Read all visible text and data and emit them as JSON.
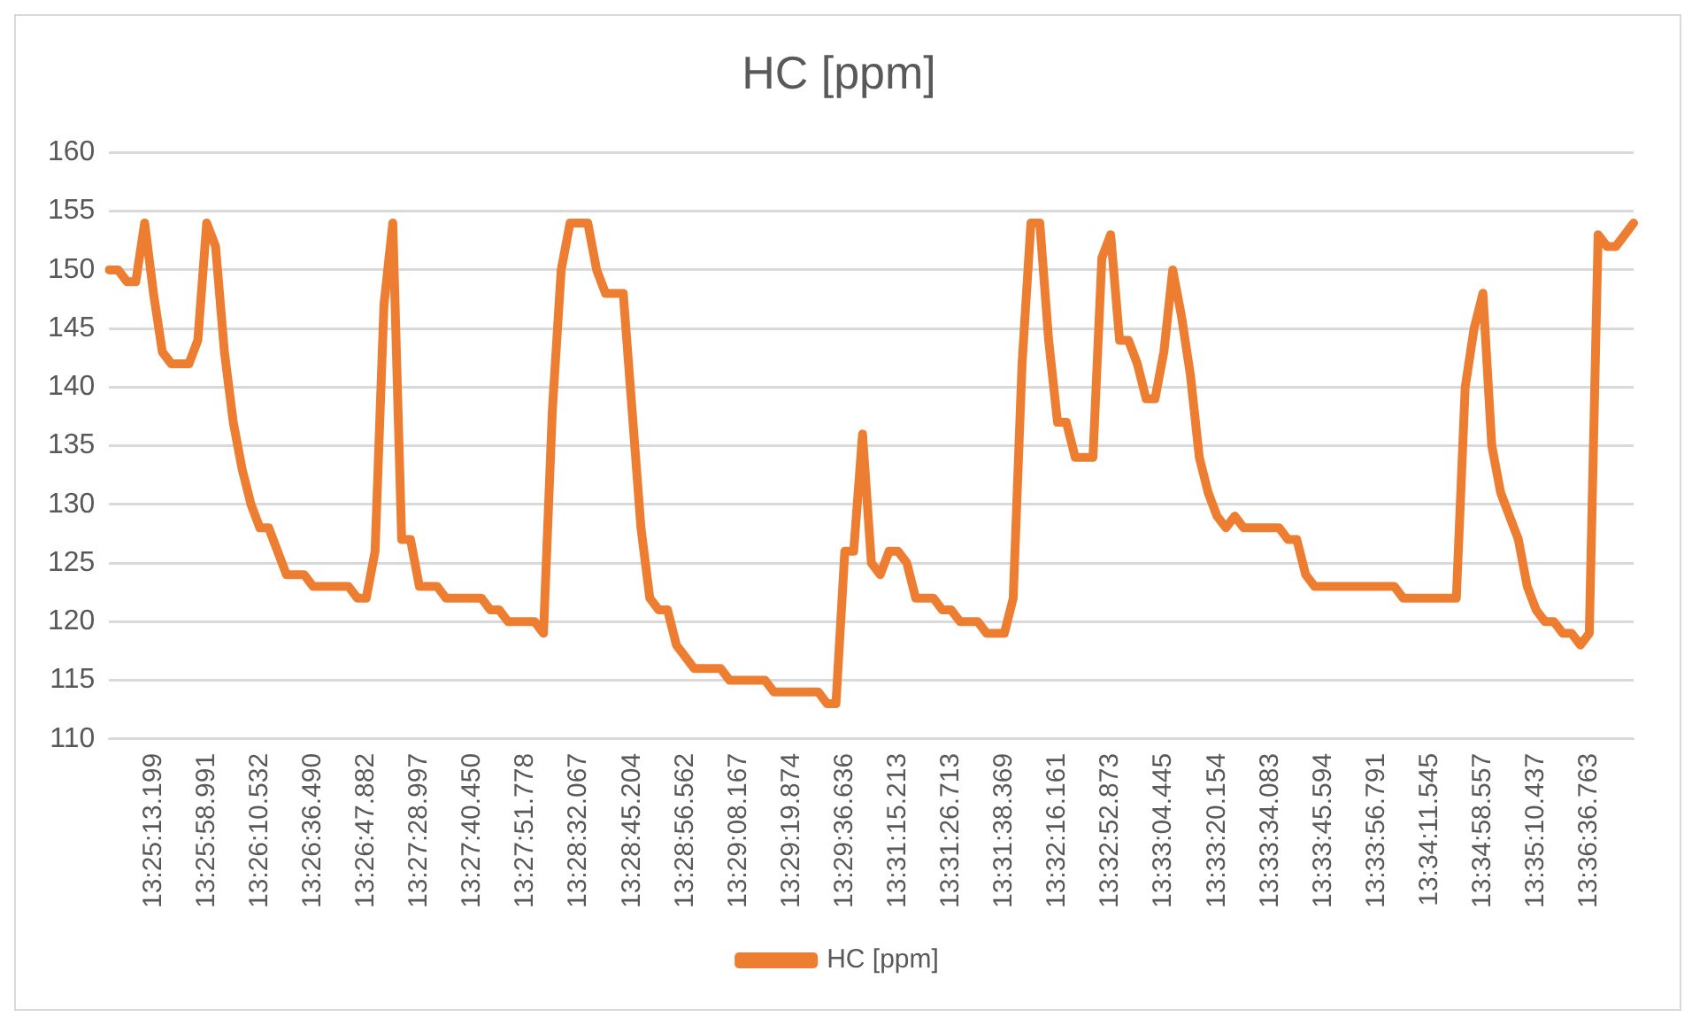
{
  "chart_data": {
    "type": "line",
    "title": "HC [ppm]",
    "categories": [
      null,
      null,
      null,
      null,
      null,
      "13:25:13.199",
      null,
      null,
      null,
      null,
      null,
      "13:25:58.991",
      null,
      null,
      null,
      null,
      null,
      "13:26:10.532",
      null,
      null,
      null,
      null,
      null,
      "13:26:36.490",
      null,
      null,
      null,
      null,
      null,
      "13:26:47.882",
      null,
      null,
      null,
      null,
      null,
      "13:27:28.997",
      null,
      null,
      null,
      null,
      null,
      "13:27:40.450",
      null,
      null,
      null,
      null,
      null,
      "13:27:51.778",
      null,
      null,
      null,
      null,
      null,
      "13:28:32.067",
      null,
      null,
      null,
      null,
      null,
      "13:28:45.204",
      null,
      null,
      null,
      null,
      null,
      "13:28:56.562",
      null,
      null,
      null,
      null,
      null,
      "13:29:08.167",
      null,
      null,
      null,
      null,
      null,
      "13:29:19.874",
      null,
      null,
      null,
      null,
      null,
      "13:29:36.636",
      null,
      null,
      null,
      null,
      null,
      "13:31:15.213",
      null,
      null,
      null,
      null,
      null,
      "13:31:26.713",
      null,
      null,
      null,
      null,
      null,
      "13:31:38.369",
      null,
      null,
      null,
      null,
      null,
      "13:32:16.161",
      null,
      null,
      null,
      null,
      null,
      "13:32:52.873",
      null,
      null,
      null,
      null,
      null,
      "13:33:04.445",
      null,
      null,
      null,
      null,
      null,
      "13:33:20.154",
      null,
      null,
      null,
      null,
      null,
      "13:33:34.083",
      null,
      null,
      null,
      null,
      null,
      "13:33:45.594",
      null,
      null,
      null,
      null,
      null,
      "13:33:56.791",
      null,
      null,
      null,
      null,
      null,
      "13:34:11.545",
      null,
      null,
      null,
      null,
      null,
      "13:34:58.557",
      null,
      null,
      null,
      null,
      null,
      "13:35:10.437",
      null,
      null,
      null,
      null,
      null,
      "13:36:36.763",
      null,
      null,
      null,
      null,
      null
    ],
    "series": [
      {
        "name": "HC [ppm]",
        "color": "#ed7d31",
        "values": [
          150,
          150,
          149,
          149,
          154,
          148,
          143,
          142,
          142,
          142,
          144,
          154,
          152,
          143,
          137,
          133,
          130,
          128,
          128,
          126,
          124,
          124,
          124,
          123,
          123,
          123,
          123,
          123,
          122,
          122,
          126,
          147,
          154,
          127,
          127,
          123,
          123,
          123,
          122,
          122,
          122,
          122,
          122,
          121,
          121,
          120,
          120,
          120,
          120,
          119,
          138,
          150,
          154,
          154,
          154,
          150,
          148,
          148,
          148,
          138,
          128,
          122,
          121,
          121,
          118,
          117,
          116,
          116,
          116,
          116,
          115,
          115,
          115,
          115,
          115,
          114,
          114,
          114,
          114,
          114,
          114,
          113,
          113,
          126,
          126,
          136,
          125,
          124,
          126,
          126,
          125,
          122,
          122,
          122,
          121,
          121,
          120,
          120,
          120,
          119,
          119,
          119,
          122,
          142,
          154,
          154,
          144,
          137,
          137,
          134,
          134,
          134,
          151,
          153,
          144,
          144,
          142,
          139,
          139,
          143,
          150,
          146,
          141,
          134,
          131,
          129,
          128,
          129,
          128,
          128,
          128,
          128,
          128,
          127,
          127,
          124,
          123,
          123,
          123,
          123,
          123,
          123,
          123,
          123,
          123,
          123,
          122,
          122,
          122,
          122,
          122,
          122,
          122,
          140,
          145,
          148,
          135,
          131,
          129,
          127,
          123,
          121,
          120,
          120,
          119,
          119,
          118,
          119,
          153,
          152,
          152,
          153,
          154
        ]
      }
    ],
    "ylim": [
      110,
      160
    ],
    "yticks": [
      110,
      115,
      120,
      125,
      130,
      135,
      140,
      145,
      150,
      155,
      160
    ],
    "grid": "y",
    "legend": "bottom",
    "marker": "none",
    "line_style": "solid"
  }
}
